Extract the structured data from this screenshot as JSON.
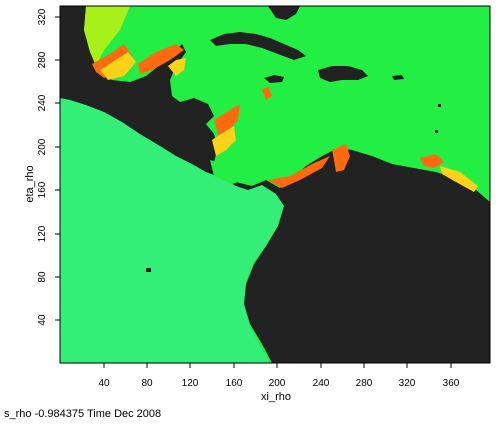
{
  "plot": {
    "xlabel": "xi_rho",
    "ylabel": "eta_rho",
    "xlim": [
      0,
      395
    ],
    "ylim": [
      0,
      330
    ],
    "xticks": [
      "40",
      "80",
      "120",
      "160",
      "200",
      "240",
      "280",
      "320",
      "360"
    ],
    "yticks": [
      "40",
      "80",
      "120",
      "160",
      "200",
      "240",
      "280",
      "320"
    ]
  },
  "caption": "s_rho -0.984375 Time Dec 2008",
  "colors": {
    "land": "#222222",
    "atlantic_field": "#22ee44",
    "pacific_field": "#33ee77",
    "coastal_high": "#ff6a10",
    "coastal_mid": "#ffd21a",
    "coastal_warm": "#a8f01a"
  }
}
